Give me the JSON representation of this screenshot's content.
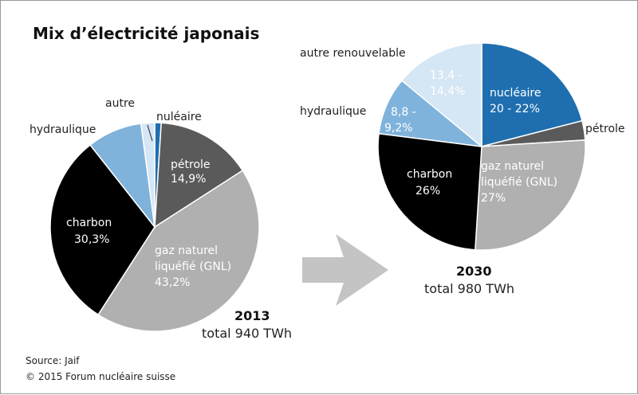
{
  "title": "Mix d’électricité japonais",
  "footer": {
    "source": "Source: Jaif",
    "copyright": "© 2015 Forum nucléaire suisse"
  },
  "colors": {
    "nucleaire": "#1f6fb0",
    "petrole": "#5a5a5a",
    "gnl": "#b0b0b0",
    "charbon": "#000000",
    "hydraulique": "#7fb3dc",
    "autre_renouvelable": "#d5e6f4",
    "arrow": "#c4c4c4"
  },
  "chart_data": [
    {
      "type": "pie",
      "year": "2013",
      "total": "total 940 TWh",
      "slices": [
        {
          "key": "nucleaire",
          "name": "nuléaire",
          "value": 1.0,
          "label": [
            "nuléaire"
          ]
        },
        {
          "key": "petrole",
          "name": "pétrole",
          "value": 14.9,
          "label": [
            "pétrole",
            "14,9%"
          ]
        },
        {
          "key": "gnl",
          "name": "gaz naturel liquéfié (GNL)",
          "value": 43.2,
          "label": [
            "gaz naturel",
            "liquéfié (GNL)",
            "43,2%"
          ]
        },
        {
          "key": "charbon",
          "name": "charbon",
          "value": 30.3,
          "label": [
            "charbon",
            "30,3%"
          ]
        },
        {
          "key": "hydraulique",
          "name": "hydraulique",
          "value": 8.5,
          "label": [
            "hydraulique"
          ]
        },
        {
          "key": "autre_renouvelable",
          "name": "autre",
          "value": 2.1,
          "label": [
            "autre"
          ]
        }
      ]
    },
    {
      "type": "pie",
      "year": "2030",
      "total": "total 980 TWh",
      "slices": [
        {
          "key": "nucleaire",
          "name": "nucléaire",
          "value": 21,
          "label": [
            "nucléaire",
            "20 - 22%"
          ]
        },
        {
          "key": "petrole",
          "name": "pétrole",
          "value": 3,
          "label": [
            "pétrole"
          ]
        },
        {
          "key": "gnl",
          "name": "gaz naturel liquéfié (GNL)",
          "value": 27,
          "label": [
            "gaz naturel",
            "liquéfié (GNL)",
            "27%"
          ]
        },
        {
          "key": "charbon",
          "name": "charbon",
          "value": 26,
          "label": [
            "charbon",
            "26%"
          ]
        },
        {
          "key": "hydraulique",
          "name": "hydraulique",
          "value": 9,
          "label": [
            "8,8 -",
            "9,2%"
          ]
        },
        {
          "key": "autre_renouvelable",
          "name": "autre renouvelable",
          "value": 14,
          "label": [
            "13,4 -",
            "14,4%"
          ]
        }
      ],
      "outside_labels": {
        "hydraulique": "hydraulique",
        "autre_renouvelable": "autre renouvelable"
      }
    }
  ]
}
